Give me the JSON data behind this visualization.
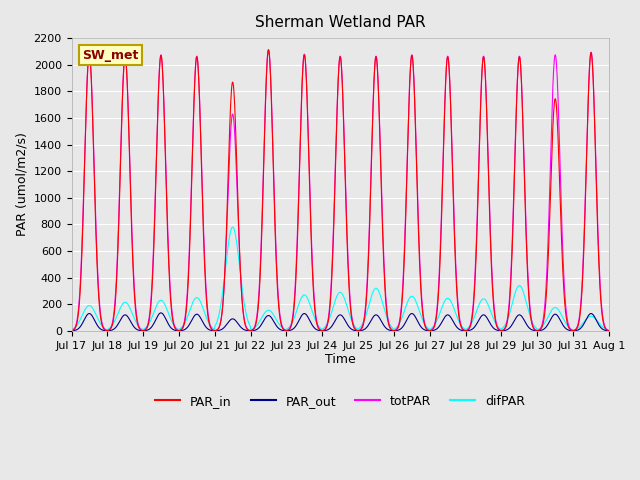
{
  "title": "Sherman Wetland PAR",
  "ylabel": "PAR (umol/m2/s)",
  "xlabel": "Time",
  "annotation": "SW_met",
  "ylim": [
    0,
    2200
  ],
  "background_color": "#e8e8e8",
  "colors": {
    "PAR_in": "#ff0000",
    "PAR_out": "#00008b",
    "totPAR": "#ff00ff",
    "difPAR": "#00ffff"
  },
  "x_tick_labels": [
    "Jul 17",
    "Jul 18",
    "Jul 19",
    "Jul 20",
    "Jul 21",
    "Jul 22",
    "Jul 23",
    "Jul 24",
    "Jul 25",
    "Jul 26",
    "Jul 27",
    "Jul 28",
    "Jul 29",
    "Jul 30",
    "Jul 31",
    "Aug 1"
  ],
  "days": 15,
  "PAR_in_peaks": [
    2080,
    2060,
    2070,
    2060,
    1870,
    2110,
    2075,
    2060,
    2060,
    2070,
    2060,
    2060,
    2060,
    1745,
    2090
  ],
  "totPAR_peaks": [
    2085,
    2065,
    2075,
    2065,
    1630,
    2115,
    2080,
    2065,
    2065,
    2075,
    2065,
    2065,
    2065,
    2075,
    2095
  ],
  "PAR_out_peaks": [
    130,
    120,
    135,
    125,
    90,
    115,
    130,
    120,
    120,
    130,
    120,
    120,
    120,
    125,
    130
  ],
  "difPAR_peaks": [
    190,
    215,
    230,
    250,
    780,
    155,
    270,
    290,
    320,
    260,
    245,
    240,
    340,
    175,
    110
  ],
  "n_points_per_day": 96,
  "yticks": [
    0,
    200,
    400,
    600,
    800,
    1000,
    1200,
    1400,
    1600,
    1800,
    2000,
    2200
  ]
}
